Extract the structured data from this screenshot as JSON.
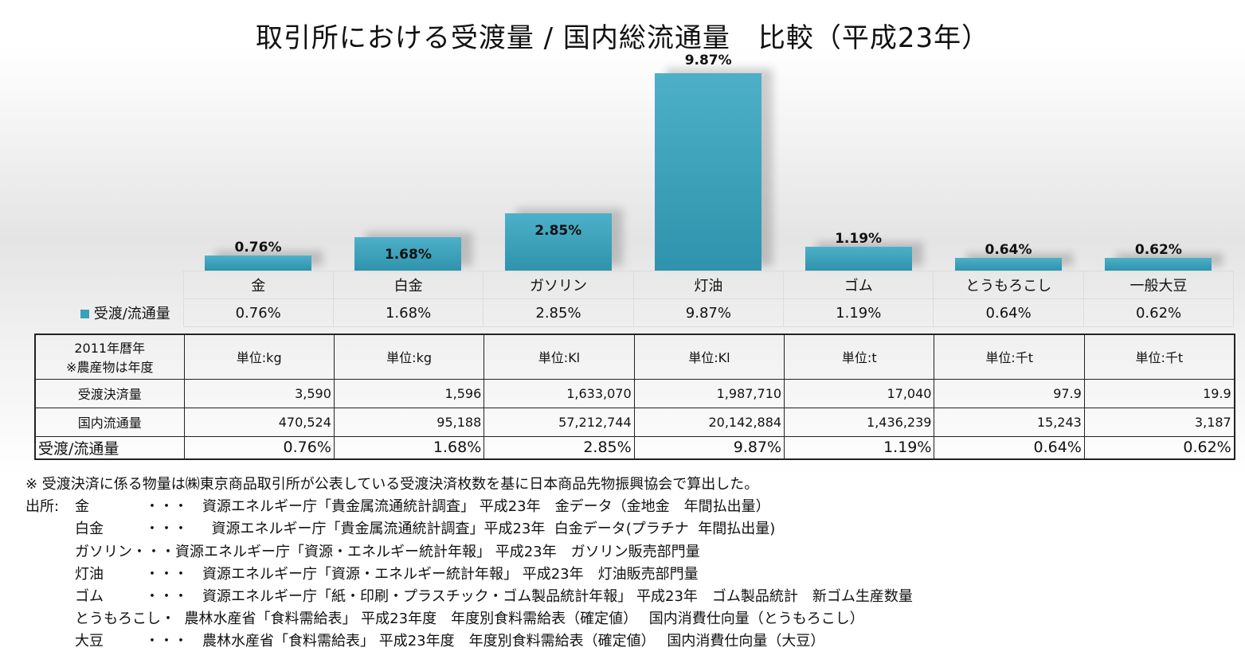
{
  "chart_data": {
    "type": "bar",
    "title": "取引所における受渡量 / 国内総流通量　比較（平成23年）",
    "categories": [
      "金",
      "白金",
      "ガソリン",
      "灯油",
      "ゴム",
      "とうもろこし",
      "一般大豆"
    ],
    "series": [
      {
        "name": "受渡/流通量",
        "values": [
          0.76,
          1.68,
          2.85,
          9.87,
          1.19,
          0.64,
          0.62
        ],
        "labels": [
          "0.76%",
          "1.68%",
          "2.85%",
          "9.87%",
          "1.19%",
          "0.64%",
          "0.62%"
        ]
      }
    ],
    "ylim": [
      0,
      10
    ],
    "color": "#3aa1bb",
    "legend": "left of data table"
  },
  "table": {
    "header_label": [
      "2011年暦年",
      "※農産物は年度"
    ],
    "units": [
      "単位:kg",
      "単位:kg",
      "単位:Kl",
      "単位:Kl",
      "単位:t",
      "単位:千t",
      "単位:千t"
    ],
    "rows": [
      {
        "label": "受渡決済量",
        "values": [
          "3,590",
          "1,596",
          "1,633,070",
          "1,987,710",
          "17,040",
          "97.9",
          "19.9"
        ]
      },
      {
        "label": "国内流通量",
        "values": [
          "470,524",
          "95,188",
          "57,212,744",
          "20,142,884",
          "1,436,239",
          "15,243",
          "3,187"
        ]
      },
      {
        "label": "受渡/流通量",
        "values": [
          "0.76%",
          "1.68%",
          "2.85%",
          "9.87%",
          "1.19%",
          "0.64%",
          "0.62%"
        ]
      }
    ]
  },
  "notes": {
    "first": "※  受渡決済に係る物量は㈱東京商品取引所が公表している受渡決済枚数を基に日本商品先物振興協会で算出した。",
    "source_label": "出所:",
    "lines": [
      {
        "item": "金",
        "dots": "・・・",
        "text": "資源エネルギー庁「貴金属流通統計調査」 平成23年　金データ（金地金　年間払出量）"
      },
      {
        "item": "白金",
        "dots": "・・・",
        "text": "  資源エネルギー庁「貴金属流通統計調査」平成23年  白金データ(プラチナ  年間払出量)"
      },
      {
        "item": "ガソリン",
        "dots": "・・・",
        "text": "資源エネルギー庁「資源・エネルギー統計年報」 平成23年　ガソリン販売部門量"
      },
      {
        "item": "灯油",
        "dots": "・・・",
        "text": "資源エネルギー庁「資源・エネルギー統計年報」 平成23年　灯油販売部門量"
      },
      {
        "item": "ゴム",
        "dots": "・・・",
        "text": "資源エネルギー庁「紙・印刷・プラスチック・ゴム製品統計年報」 平成23年　ゴム製品統計　新ゴム生産数量"
      },
      {
        "item": "とうもろこし",
        "dots": "・",
        "text": "  農林水産省「食料需給表」 平成23年度　年度別食料需給表（確定値）　 国内消費仕向量（とうもろこし）"
      },
      {
        "item": "大豆",
        "dots": "・・・",
        "text": "農林水産省「食料需給表」 平成23年度　年度別食料需給表（確定値）　 国内消費仕向量（大豆）"
      }
    ]
  }
}
